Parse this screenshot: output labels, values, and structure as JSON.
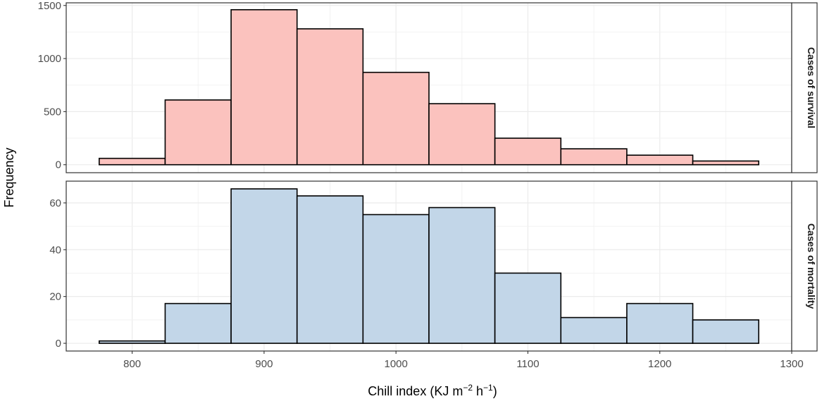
{
  "chart_data": {
    "type": "bar",
    "xlabel": "Chill index (KJ m",
    "xlabel_sup1": "−2",
    "xlabel_mid": " h",
    "xlabel_sup2": "−1",
    "xlabel_end": ")",
    "ylabel": "Frequency",
    "xlim": [
      750,
      1300
    ],
    "x_ticks": [
      800,
      900,
      1000,
      1100,
      1200,
      1300
    ],
    "bin_width": 50,
    "grid": true,
    "panels": [
      {
        "name": "Cases of survival",
        "color": "#fbc2be",
        "ylim": [
          -75,
          1525
        ],
        "y_ticks": [
          0,
          500,
          1000,
          1500
        ],
        "bins": [
          {
            "x0": 775,
            "x1": 825,
            "value": 60
          },
          {
            "x0": 825,
            "x1": 875,
            "value": 610
          },
          {
            "x0": 875,
            "x1": 925,
            "value": 1460
          },
          {
            "x0": 925,
            "x1": 975,
            "value": 1280
          },
          {
            "x0": 975,
            "x1": 1025,
            "value": 870
          },
          {
            "x0": 1025,
            "x1": 1075,
            "value": 575
          },
          {
            "x0": 1075,
            "x1": 1125,
            "value": 250
          },
          {
            "x0": 1125,
            "x1": 1175,
            "value": 150
          },
          {
            "x0": 1175,
            "x1": 1225,
            "value": 90
          },
          {
            "x0": 1225,
            "x1": 1275,
            "value": 35
          }
        ]
      },
      {
        "name": "Cases of mortality",
        "color": "#c2d6e8",
        "ylim": [
          -3.3,
          69.3
        ],
        "y_ticks": [
          0,
          20,
          40,
          60
        ],
        "bins": [
          {
            "x0": 775,
            "x1": 825,
            "value": 1
          },
          {
            "x0": 825,
            "x1": 875,
            "value": 17
          },
          {
            "x0": 875,
            "x1": 925,
            "value": 66
          },
          {
            "x0": 925,
            "x1": 975,
            "value": 63
          },
          {
            "x0": 975,
            "x1": 1025,
            "value": 55
          },
          {
            "x0": 1025,
            "x1": 1075,
            "value": 58
          },
          {
            "x0": 1075,
            "x1": 1125,
            "value": 30
          },
          {
            "x0": 1125,
            "x1": 1175,
            "value": 11
          },
          {
            "x0": 1175,
            "x1": 1225,
            "value": 17
          },
          {
            "x0": 1225,
            "x1": 1275,
            "value": 10
          }
        ]
      }
    ]
  }
}
